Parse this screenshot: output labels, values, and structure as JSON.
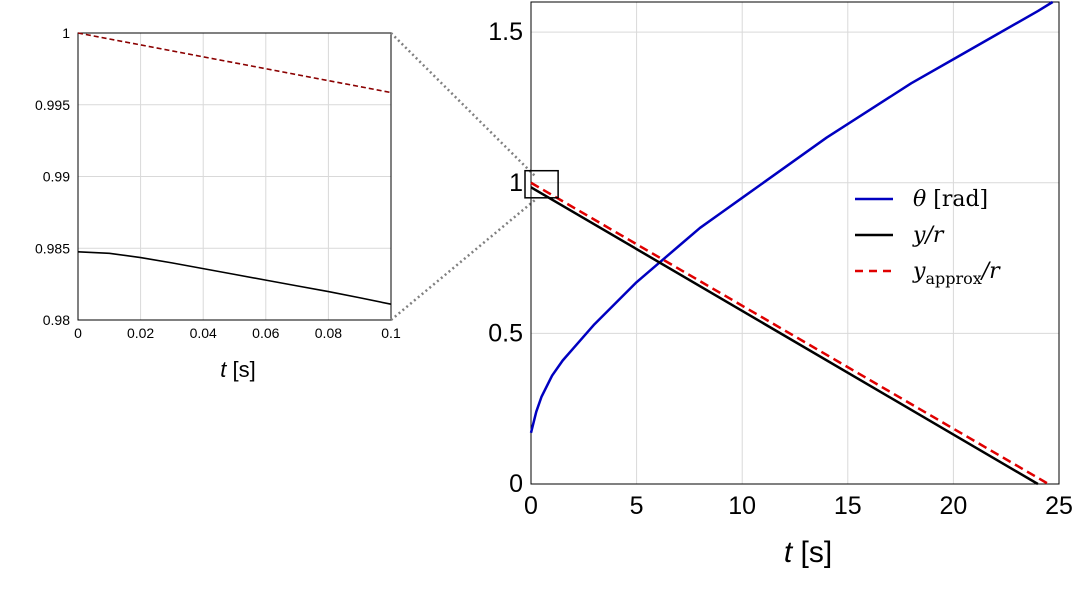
{
  "chart_data": [
    {
      "id": "inset",
      "type": "line",
      "xlabel_var": "t",
      "xlabel_unit": "[s]",
      "xlim": [
        0,
        0.1
      ],
      "ylim": [
        0.98,
        1.0
      ],
      "xticks": [
        "0",
        "0.02",
        "0.04",
        "0.06",
        "0.08",
        "0.1"
      ],
      "yticks": [
        "0.98",
        "0.985",
        "0.99",
        "0.995",
        "1"
      ],
      "grid": true,
      "series": [
        {
          "key": "y_over_r",
          "style": "solid",
          "color": "#000000",
          "x": [
            0,
            0.01,
            0.02,
            0.03,
            0.04,
            0.05,
            0.06,
            0.07,
            0.08,
            0.09,
            0.1
          ],
          "y": [
            0.98475,
            0.98465,
            0.98435,
            0.98398,
            0.98358,
            0.98318,
            0.98278,
            0.98238,
            0.98198,
            0.98155,
            0.9811
          ]
        },
        {
          "key": "y_approx_over_r",
          "style": "dashed",
          "color": "#8b0000",
          "x": [
            0,
            0.1
          ],
          "y": [
            1.0,
            0.99585
          ]
        }
      ]
    },
    {
      "id": "main",
      "type": "line",
      "xlabel_var": "t",
      "xlabel_unit": "[s]",
      "xlim": [
        0,
        25
      ],
      "ylim": [
        0,
        1.6
      ],
      "xticks": [
        "0",
        "5",
        "10",
        "15",
        "20",
        "25"
      ],
      "yticks": [
        "0",
        "0.5",
        "1",
        "1.5"
      ],
      "grid": true,
      "legend_position": "right",
      "series": [
        {
          "key": "theta",
          "style": "solid",
          "color": "#0000c0",
          "legend_var": "θ",
          "legend_unit": "[rad]",
          "x": [
            0,
            0.25,
            0.5,
            1,
            1.5,
            2,
            3,
            4,
            5,
            6,
            7,
            8,
            9,
            10,
            12,
            14,
            16,
            18,
            20,
            22,
            24,
            24.7
          ],
          "y": [
            0.17,
            0.24,
            0.29,
            0.36,
            0.41,
            0.45,
            0.53,
            0.6,
            0.67,
            0.73,
            0.79,
            0.85,
            0.9,
            0.95,
            1.05,
            1.15,
            1.24,
            1.33,
            1.41,
            1.49,
            1.57,
            1.6
          ]
        },
        {
          "key": "y_over_r",
          "style": "solid",
          "color": "#000000",
          "legend_var": "y",
          "legend_suffix": "/r",
          "x": [
            0,
            24.0
          ],
          "y": [
            0.985,
            0.0
          ]
        },
        {
          "key": "y_approx_over_r",
          "style": "dashed",
          "color": "#e00000",
          "legend_var": "y",
          "legend_sub": "approx",
          "legend_suffix": "/r",
          "x": [
            0,
            24.5
          ],
          "y": [
            1.0,
            0.0
          ]
        }
      ],
      "zoom_box": {
        "xlim": [
          0,
          1.0
        ],
        "ylim": [
          0.95,
          1.04
        ]
      }
    }
  ]
}
